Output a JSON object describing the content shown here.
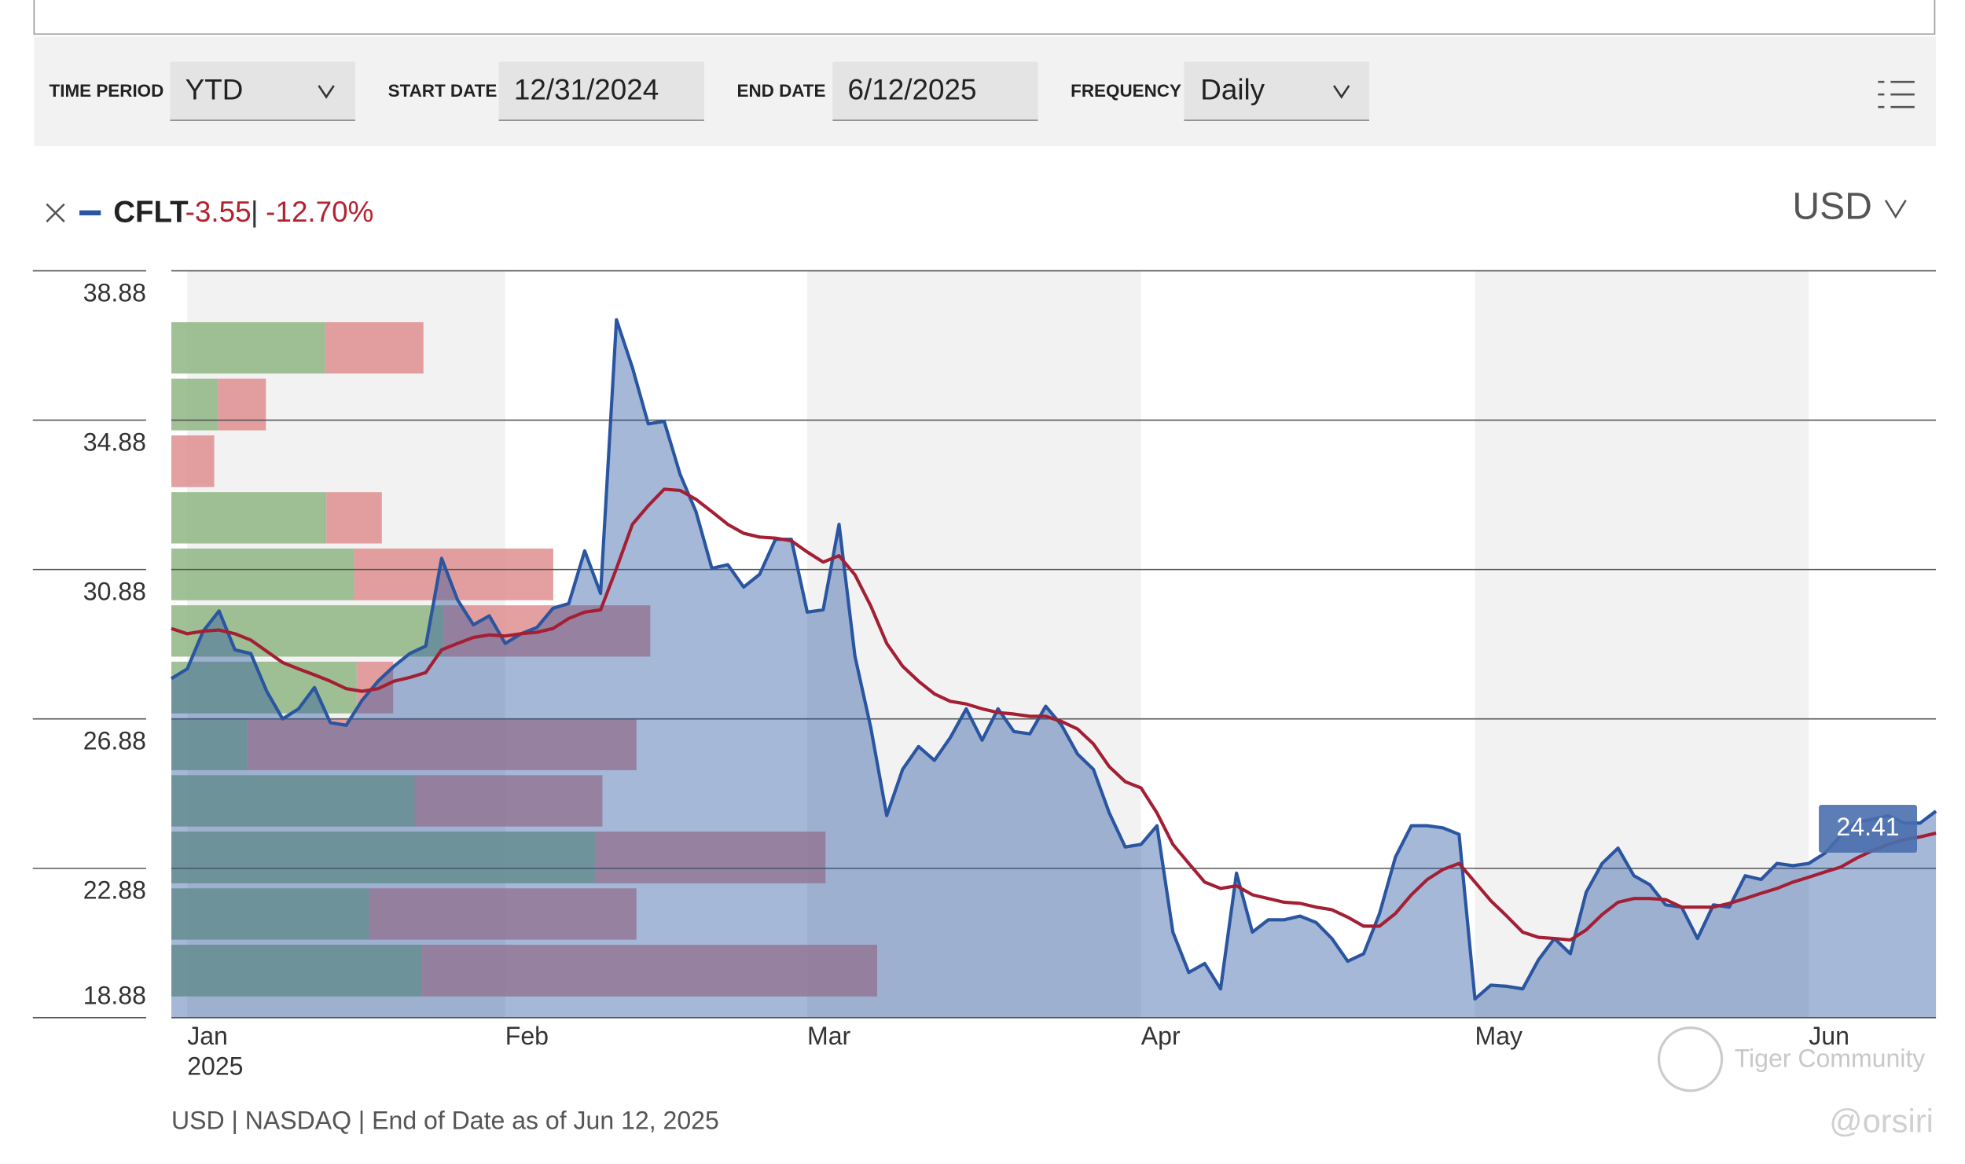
{
  "controls": {
    "time_period_label": "TIME PERIOD",
    "time_period": "YTD",
    "start_date_label": "START DATE",
    "start_date": "12/31/2024",
    "end_date_label": "END DATE",
    "end_date": "6/12/2025",
    "frequency_label": "FREQUENCY",
    "frequency": "Daily"
  },
  "header": {
    "change": "-3.55",
    "separator": "|",
    "change_pct": "-12.70%",
    "currency": "USD"
  },
  "footer": "USD | NASDAQ | End of Date as of Jun 12, 2025",
  "watermark": [
    "Tiger Community",
    "@orsiri"
  ],
  "chart_data": {
    "type": "line",
    "categories": [
      null,
      "Jan",
      null,
      null,
      null,
      null,
      null,
      null,
      null,
      null,
      null,
      null,
      null,
      null,
      null,
      null,
      null,
      null,
      null,
      null,
      null,
      "Feb",
      null,
      null,
      null,
      null,
      null,
      null,
      null,
      null,
      null,
      null,
      null,
      null,
      null,
      null,
      null,
      null,
      null,
      null,
      "Mar",
      null,
      null,
      null,
      null,
      null,
      null,
      null,
      null,
      null,
      null,
      null,
      null,
      null,
      null,
      null,
      null,
      null,
      null,
      null,
      null,
      "Apr",
      null,
      null,
      null,
      null,
      null,
      null,
      null,
      null,
      null,
      null,
      null,
      null,
      null,
      null,
      null,
      null,
      null,
      null,
      null,
      null,
      "May",
      null,
      null,
      null,
      null,
      null,
      null,
      null,
      null,
      null,
      null,
      null,
      null,
      null,
      null,
      null,
      null,
      null,
      null,
      null,
      null,
      "Jun",
      null,
      null,
      null,
      null,
      null,
      null,
      null,
      null
    ],
    "year": "2025",
    "series": [
      {
        "name": "CFLT",
        "color": "#2a55a0",
        "values": [
          27.96,
          28.22,
          29.23,
          29.77,
          28.73,
          28.63,
          27.62,
          26.88,
          27.15,
          27.72,
          26.78,
          26.71,
          27.38,
          27.89,
          28.29,
          28.63,
          28.83,
          31.18,
          30.07,
          29.4,
          29.64,
          28.9,
          29.16,
          29.33,
          29.84,
          29.97,
          31.38,
          30.24,
          37.57,
          36.29,
          34.78,
          34.85,
          33.43,
          32.43,
          30.91,
          31.01,
          30.41,
          30.75,
          31.69,
          31.69,
          29.74,
          29.8,
          32.09,
          28.56,
          26.64,
          24.29,
          25.53,
          26.14,
          25.77,
          26.38,
          27.15,
          26.31,
          27.15,
          26.54,
          26.48,
          27.22,
          26.71,
          25.94,
          25.53,
          24.36,
          23.45,
          23.52,
          24.02,
          21.17,
          20.09,
          20.33,
          19.65,
          22.75,
          21.17,
          21.5,
          21.5,
          21.6,
          21.43,
          21,
          20.39,
          20.59,
          21.67,
          23.18,
          24.02,
          24.02,
          23.96,
          23.79,
          19.38,
          19.75,
          19.72,
          19.65,
          20.43,
          21,
          20.59,
          22.24,
          23.01,
          23.42,
          22.68,
          22.44,
          21.9,
          21.84,
          21,
          21.9,
          21.84,
          22.68,
          22.58,
          23.01,
          22.95,
          23.01,
          23.28,
          23.75,
          24.12,
          24.19,
          24.29,
          24.09,
          24.09,
          24.41
        ]
      },
      {
        "color": "#a31f34",
        "values": [
          29.3,
          29.16,
          29.23,
          29.26,
          29.16,
          28.99,
          28.69,
          28.39,
          28.22,
          28.06,
          27.89,
          27.69,
          27.62,
          27.69,
          27.89,
          27.99,
          28.12,
          28.73,
          28.9,
          29.06,
          29.13,
          29.1,
          29.16,
          29.2,
          29.3,
          29.57,
          29.74,
          29.8,
          30.91,
          32.09,
          32.59,
          33.03,
          33,
          32.76,
          32.43,
          32.09,
          31.85,
          31.75,
          31.72,
          31.65,
          31.35,
          31.08,
          31.25,
          30.74,
          29.9,
          28.9,
          28.29,
          27.89,
          27.55,
          27.35,
          27.28,
          27.15,
          27.05,
          27.01,
          26.95,
          26.95,
          26.81,
          26.61,
          26.21,
          25.6,
          25.2,
          25.03,
          24.36,
          23.52,
          23.01,
          22.51,
          22.34,
          22.41,
          22.17,
          22.07,
          21.97,
          21.94,
          21.84,
          21.77,
          21.57,
          21.33,
          21.33,
          21.67,
          22.17,
          22.58,
          22.85,
          23.01,
          22.51,
          22.01,
          21.6,
          21.17,
          21.03,
          21,
          20.96,
          21.23,
          21.64,
          21.97,
          22.07,
          22.07,
          22.04,
          21.84,
          21.84,
          21.84,
          21.94,
          22.07,
          22.21,
          22.34,
          22.51,
          22.64,
          22.78,
          22.91,
          23.15,
          23.35,
          23.52,
          23.65,
          23.72,
          23.82
        ]
      }
    ],
    "ylim": [
      18.88,
      38.88
    ],
    "yticks": [
      18.88,
      22.88,
      26.88,
      30.88,
      34.88,
      38.88
    ],
    "grid": true,
    "volume_profile": {
      "bins": [
        19.38,
        20.9,
        22.41,
        23.93,
        25.44,
        26.96,
        28.48,
        29.99,
        31.51,
        33.02,
        34.54,
        36.06,
        37.57
      ],
      "up_color": "#8fb584",
      "down_color": "#df8f8f",
      "up": [
        199,
        157,
        336,
        193,
        60,
        147,
        216,
        145,
        123,
        0,
        37,
        122
      ],
      "down": [
        361,
        212,
        183,
        149,
        309,
        29,
        164,
        158,
        44,
        34,
        38,
        78
      ]
    }
  }
}
